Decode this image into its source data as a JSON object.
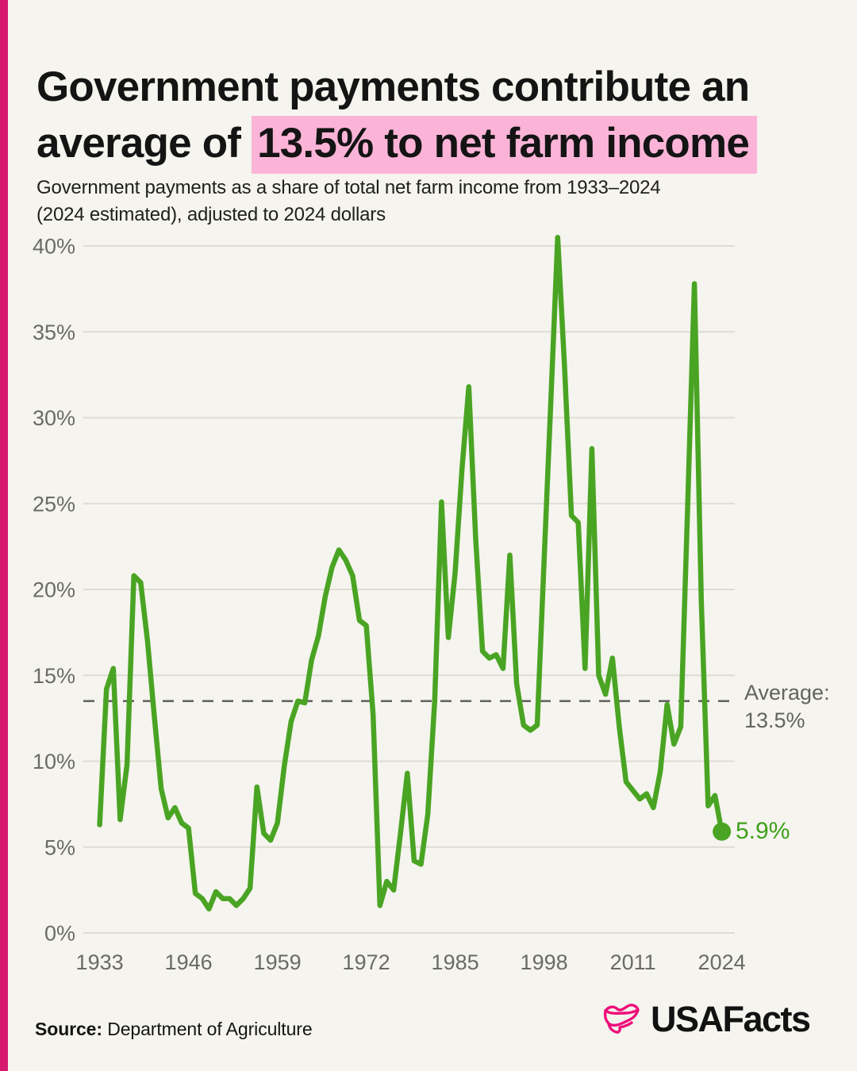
{
  "colors": {
    "background": "#f5f4ee",
    "accent_bar": "#d6196f",
    "title_highlight": "#fbb4d7",
    "line_green": "#4aa423",
    "endpoint_green": "#3fa01c",
    "gridline": "#dedcd2",
    "average_dash": "#666662",
    "tick_label": "#6b6b66",
    "logo_pink": "#ed0f7b"
  },
  "header": {
    "title_line1": "Government payments contribute an",
    "title_line2_prefix": "average of ",
    "title_line2_highlight": "13.5% to net farm income",
    "subtitle_line1": "Government payments as a share of total net farm income from 1933–2024",
    "subtitle_line2": "(2024 estimated), adjusted to 2024 dollars"
  },
  "chart_data": {
    "type": "line",
    "title": "Government payments contribute an average of 13.5% to net farm income",
    "xlabel": "",
    "ylabel": "Government payments as a share of total net farm income (%)",
    "x_start": 1933,
    "x_end": 2024,
    "xlim": [
      1933,
      2024
    ],
    "ylim": [
      0,
      40
    ],
    "grid": "horizontal",
    "legend": "none",
    "xticks": [
      1933,
      1946,
      1959,
      1972,
      1985,
      1998,
      2011,
      2024
    ],
    "ytick_values": [
      0,
      5,
      10,
      15,
      20,
      25,
      30,
      35,
      40
    ],
    "ytick_labels": [
      "0%",
      "5%",
      "10%",
      "15%",
      "20%",
      "25%",
      "30%",
      "35%",
      "40%"
    ],
    "average_value": 13.5,
    "endpoint_year": 2024,
    "endpoint_value": 5.9,
    "series": [
      {
        "name": "Government payments share of net farm income",
        "values": [
          6.3,
          14.2,
          15.4,
          6.6,
          9.8,
          20.8,
          20.4,
          17.0,
          12.6,
          8.4,
          6.7,
          7.3,
          6.4,
          6.1,
          2.3,
          2.0,
          1.4,
          2.4,
          2.0,
          2.0,
          1.6,
          2.0,
          2.6,
          8.5,
          5.8,
          5.4,
          6.4,
          9.7,
          12.3,
          13.5,
          13.4,
          15.9,
          17.3,
          19.6,
          21.3,
          22.3,
          21.7,
          20.8,
          18.2,
          17.9,
          12.7,
          1.6,
          3.0,
          2.5,
          5.8,
          9.3,
          4.2,
          4.0,
          6.9,
          13.5,
          25.1,
          17.2,
          21.0,
          27.0,
          31.8,
          23.0,
          16.4,
          16.0,
          16.2,
          15.4,
          22.0,
          14.5,
          12.1,
          11.8,
          12.1,
          21.6,
          31.0,
          40.5,
          33.0,
          24.3,
          23.9,
          15.4,
          28.2,
          15.0,
          13.9,
          16.0,
          12.0,
          8.8,
          8.3,
          7.8,
          8.1,
          7.3,
          9.4,
          13.3,
          11.0,
          12.0,
          24.7,
          37.8,
          19.3,
          7.4,
          8.0,
          5.9
        ]
      }
    ]
  },
  "annotations": {
    "average_line1": "Average:",
    "average_line2": "13.5%",
    "endpoint": "5.9%"
  },
  "footer": {
    "source_label": "Source:",
    "source_text": " Department of Agriculture",
    "logo_text": "USAFacts"
  }
}
